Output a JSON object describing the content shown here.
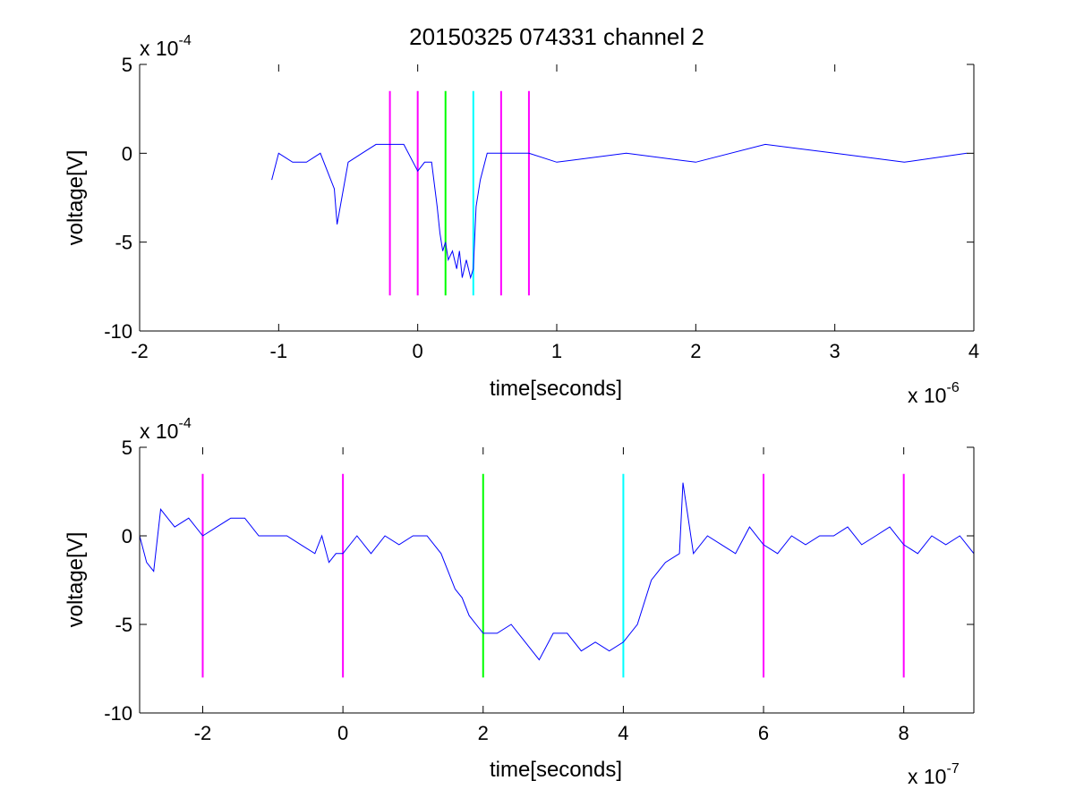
{
  "chart_data": {
    "type": "line",
    "title": "20150325 074331 channel 2",
    "colors": {
      "signal": "#0000ff",
      "marker_magenta": "#ff00ff",
      "marker_green": "#00ff00",
      "marker_cyan": "#00ffff"
    },
    "plots": [
      {
        "id": "full-trace",
        "xlabel": "time[seconds]",
        "ylabel": "voltage[V]",
        "x_multiplier": "x 10",
        "x_exponent": "-6",
        "y_multiplier": "x 10",
        "y_exponent": "-4",
        "xlim": [
          -2,
          4
        ],
        "ylim": [
          -10,
          5
        ],
        "xticks": [
          -2,
          -1,
          0,
          1,
          2,
          3,
          4
        ],
        "xtick_labels": [
          "-2",
          "-1",
          "0",
          "1",
          "2",
          "3",
          "4"
        ],
        "yticks": [
          -10,
          -5,
          0,
          5
        ],
        "ytick_labels": [
          "-10",
          "-5",
          "0",
          "5"
        ],
        "series": [
          {
            "color": "#0000ff",
            "x": [
              -1.05,
              -1.0,
              -0.9,
              -0.8,
              -0.7,
              -0.6,
              -0.58,
              -0.5,
              -0.4,
              -0.3,
              -0.2,
              -0.1,
              0.0,
              0.05,
              0.1,
              0.14,
              0.16,
              0.18,
              0.2,
              0.22,
              0.25,
              0.28,
              0.3,
              0.32,
              0.35,
              0.38,
              0.4,
              0.42,
              0.45,
              0.5,
              0.6,
              0.8,
              1.0,
              1.5,
              2.0,
              2.5,
              3.0,
              3.5,
              3.95
            ],
            "y": [
              -1.5,
              0.0,
              -0.5,
              -0.5,
              0.0,
              -2.0,
              -4.0,
              -0.5,
              0.0,
              0.5,
              0.5,
              0.5,
              -1.0,
              -0.5,
              -0.5,
              -3.0,
              -4.5,
              -5.5,
              -5.0,
              -6.0,
              -5.5,
              -6.5,
              -5.5,
              -7.0,
              -6.0,
              -7.0,
              -6.5,
              -3.0,
              -1.5,
              0.0,
              0.0,
              0.0,
              -0.5,
              0.0,
              -0.5,
              0.5,
              0.0,
              -0.5,
              0.0
            ]
          }
        ],
        "markers": [
          {
            "x": -0.2,
            "color": "#ff00ff",
            "ylim": [
              -8,
              3.5
            ]
          },
          {
            "x": 0.0,
            "color": "#ff00ff",
            "ylim": [
              -8,
              3.5
            ]
          },
          {
            "x": 0.2,
            "color": "#00ff00",
            "ylim": [
              -8,
              3.5
            ]
          },
          {
            "x": 0.4,
            "color": "#00ffff",
            "ylim": [
              -8,
              3.5
            ]
          },
          {
            "x": 0.6,
            "color": "#ff00ff",
            "ylim": [
              -8,
              3.5
            ]
          },
          {
            "x": 0.8,
            "color": "#ff00ff",
            "ylim": [
              -8,
              3.5
            ]
          }
        ]
      },
      {
        "id": "zoomed-trace",
        "xlabel": "time[seconds]",
        "ylabel": "voltage[V]",
        "x_multiplier": "x 10",
        "x_exponent": "-7",
        "y_multiplier": "x 10",
        "y_exponent": "-4",
        "xlim": [
          -2.9,
          9.0
        ],
        "ylim": [
          -10,
          5
        ],
        "xticks": [
          -2,
          0,
          2,
          4,
          6,
          8
        ],
        "xtick_labels": [
          "-2",
          "0",
          "2",
          "4",
          "6",
          "8"
        ],
        "yticks": [
          -10,
          -5,
          0,
          5
        ],
        "ytick_labels": [
          "-10",
          "-5",
          "0",
          "5"
        ],
        "series": [
          {
            "color": "#0000ff",
            "x": [
              -2.9,
              -2.8,
              -2.7,
              -2.6,
              -2.5,
              -2.4,
              -2.2,
              -2.0,
              -1.8,
              -1.6,
              -1.4,
              -1.2,
              -1.0,
              -0.8,
              -0.6,
              -0.4,
              -0.3,
              -0.2,
              -0.1,
              0.0,
              0.2,
              0.4,
              0.6,
              0.8,
              1.0,
              1.2,
              1.4,
              1.5,
              1.6,
              1.7,
              1.8,
              1.9,
              2.0,
              2.2,
              2.4,
              2.6,
              2.8,
              3.0,
              3.2,
              3.4,
              3.6,
              3.8,
              4.0,
              4.2,
              4.4,
              4.6,
              4.8,
              4.85,
              5.0,
              5.2,
              5.4,
              5.6,
              5.8,
              6.0,
              6.2,
              6.4,
              6.6,
              6.8,
              7.0,
              7.2,
              7.4,
              7.6,
              7.8,
              8.0,
              8.2,
              8.4,
              8.6,
              8.8,
              9.0
            ],
            "y": [
              0.0,
              -1.5,
              -2.0,
              1.5,
              1.0,
              0.5,
              1.0,
              0.0,
              0.5,
              1.0,
              1.0,
              0.0,
              0.0,
              0.0,
              -0.5,
              -1.0,
              0.0,
              -1.5,
              -1.0,
              -1.0,
              0.0,
              -1.0,
              0.0,
              -0.5,
              0.0,
              0.0,
              -1.0,
              -2.0,
              -3.0,
              -3.5,
              -4.5,
              -5.0,
              -5.5,
              -5.5,
              -5.0,
              -6.0,
              -7.0,
              -5.5,
              -5.5,
              -6.5,
              -6.0,
              -6.5,
              -6.0,
              -5.0,
              -2.5,
              -1.5,
              -1.0,
              3.0,
              -1.0,
              0.0,
              -0.5,
              -1.0,
              0.5,
              -0.5,
              -1.0,
              0.0,
              -0.5,
              0.0,
              0.0,
              0.5,
              -0.5,
              0.0,
              0.5,
              -0.5,
              -1.0,
              0.0,
              -0.5,
              0.0,
              -1.0
            ]
          }
        ],
        "markers": [
          {
            "x": -2,
            "color": "#ff00ff",
            "ylim": [
              -8,
              3.5
            ]
          },
          {
            "x": 0,
            "color": "#ff00ff",
            "ylim": [
              -8,
              3.5
            ]
          },
          {
            "x": 2,
            "color": "#00ff00",
            "ylim": [
              -8,
              3.5
            ]
          },
          {
            "x": 4,
            "color": "#00ffff",
            "ylim": [
              -8,
              3.5
            ]
          },
          {
            "x": 6,
            "color": "#ff00ff",
            "ylim": [
              -8,
              3.5
            ]
          },
          {
            "x": 8,
            "color": "#ff00ff",
            "ylim": [
              -8,
              3.5
            ]
          }
        ]
      }
    ]
  }
}
